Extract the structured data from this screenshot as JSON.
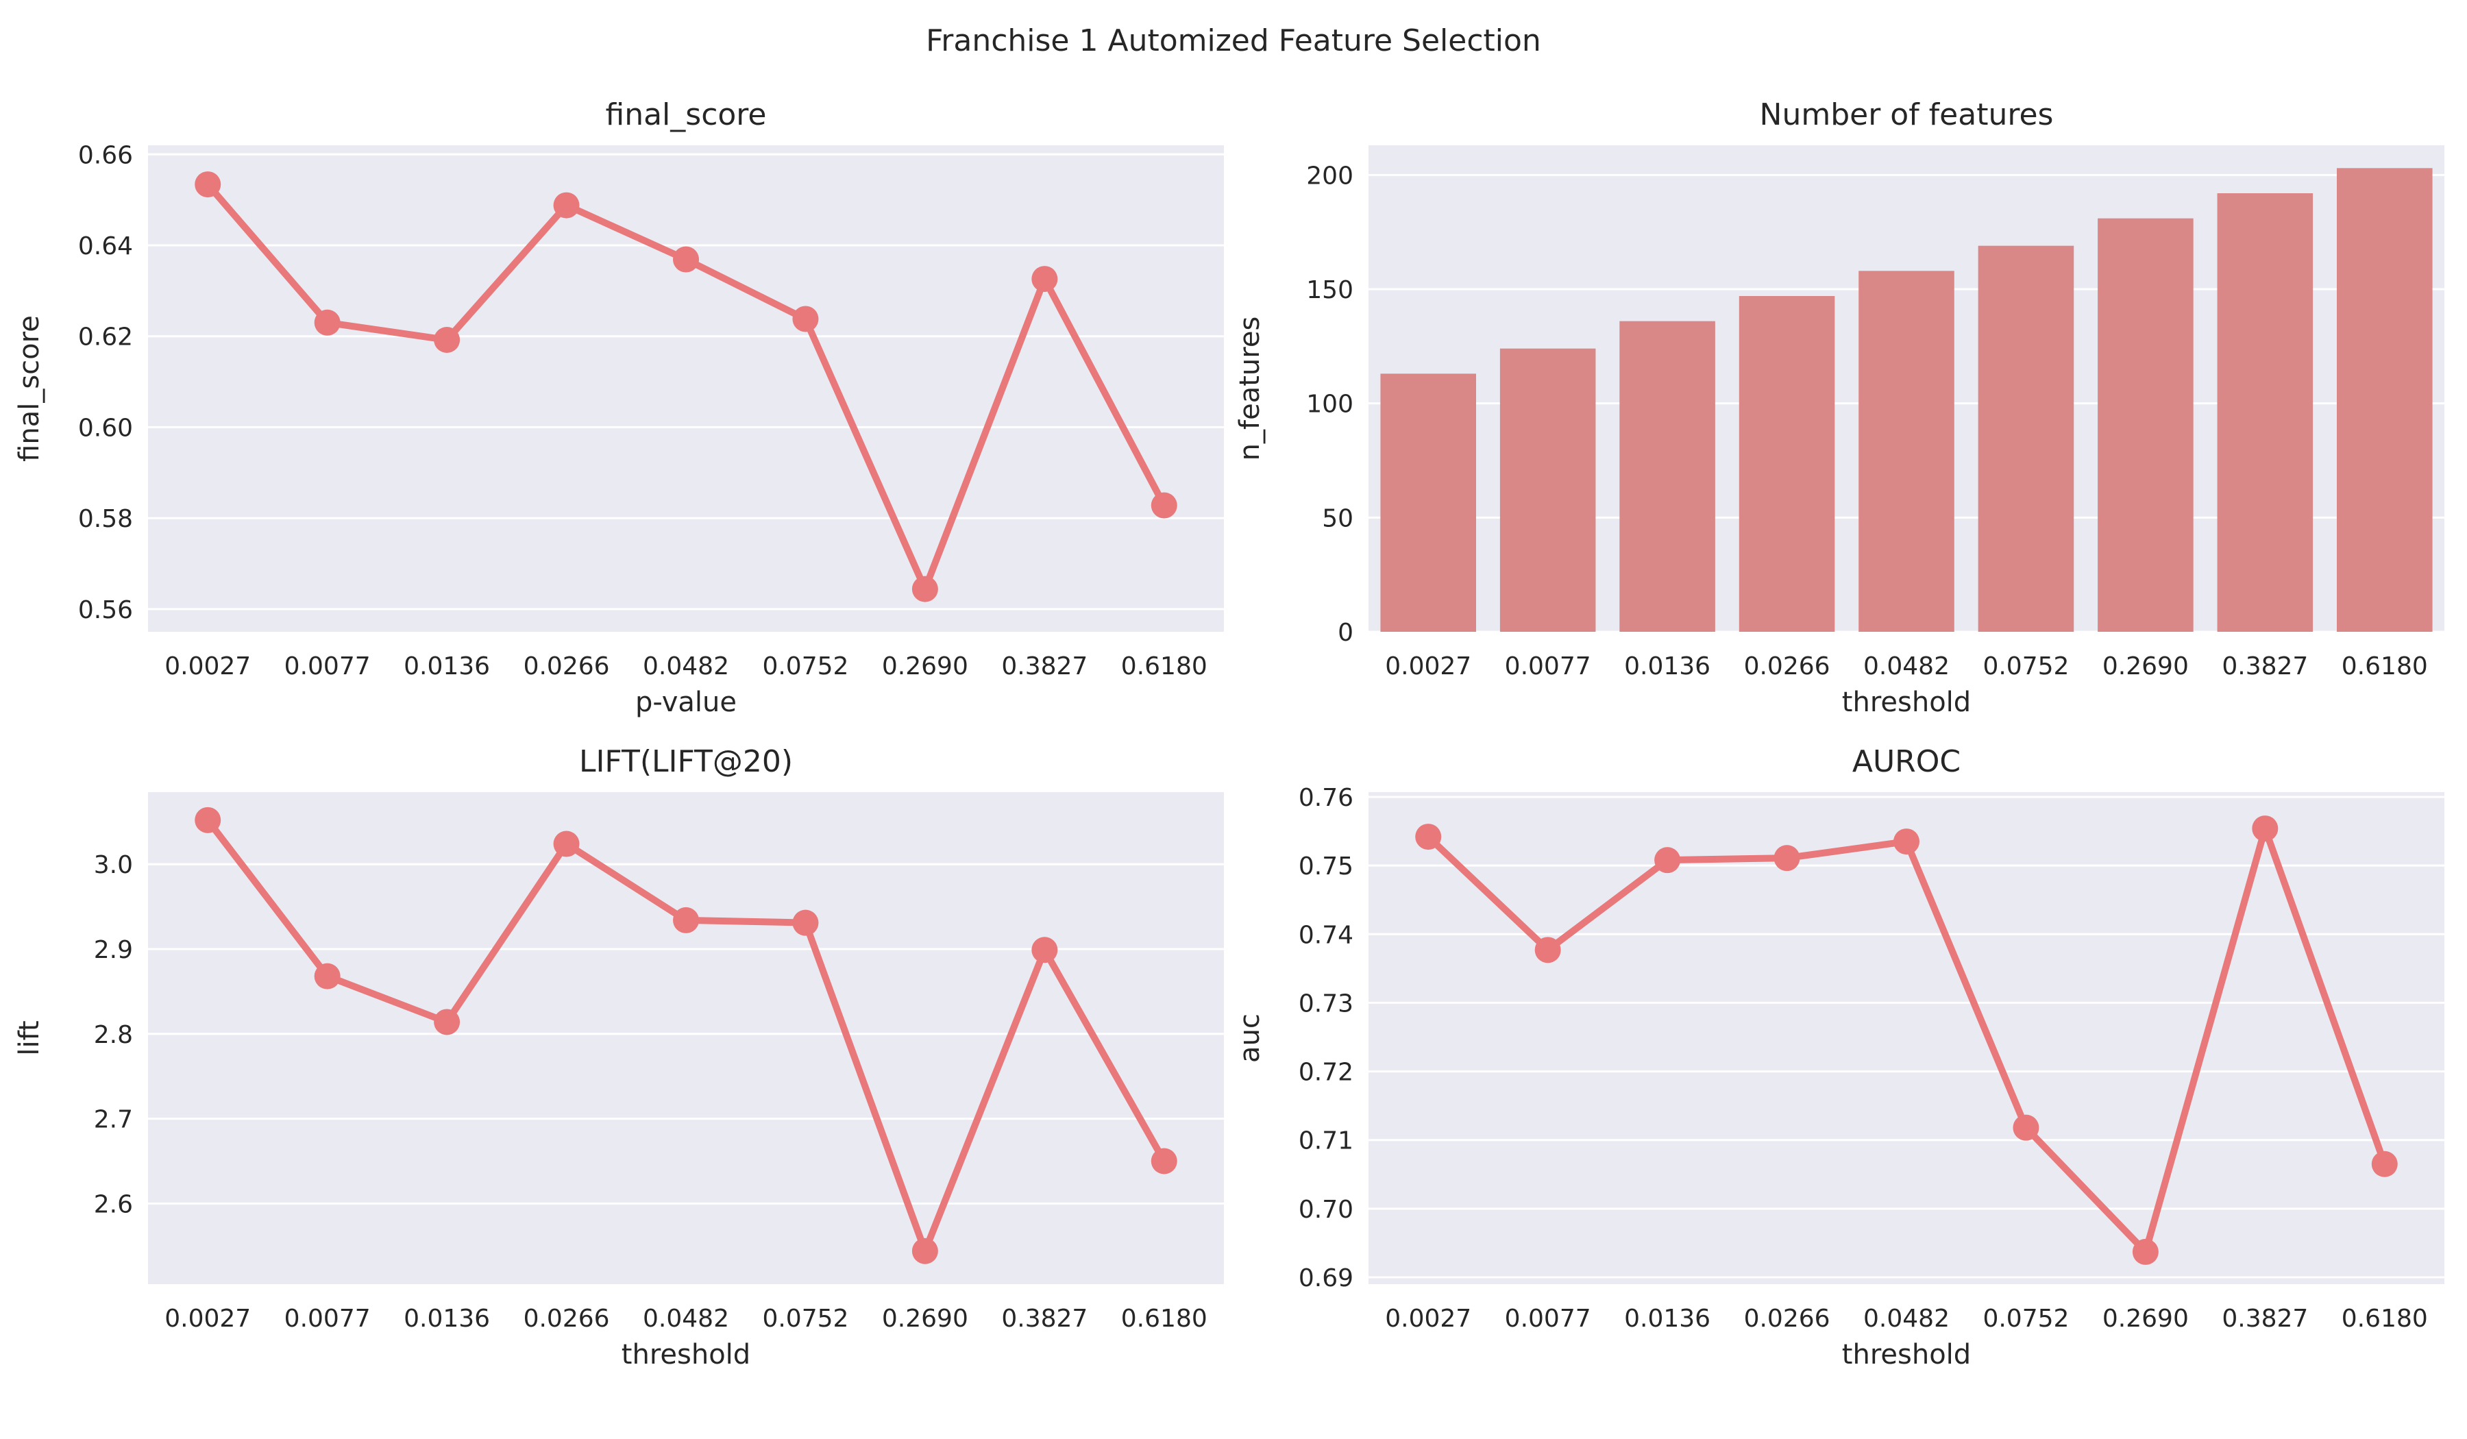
{
  "figure": {
    "suptitle": "Franchise 1 Automized Feature Selection",
    "colors": {
      "background": "#eaeaf2",
      "grid": "#ffffff",
      "text": "#262626",
      "series": "#e8787a",
      "bar": "#d98787"
    }
  },
  "chart_data": [
    {
      "type": "line",
      "title": "final_score",
      "xlabel": "p-value",
      "ylabel": "final_score",
      "categories": [
        "0.0027",
        "0.0077",
        "0.0136",
        "0.0266",
        "0.0482",
        "0.0752",
        "0.2690",
        "0.3827",
        "0.6180"
      ],
      "values": [
        0.6534,
        0.623,
        0.6192,
        0.6488,
        0.6369,
        0.6238,
        0.5644,
        0.6326,
        0.5828
      ],
      "ylim": [
        0.555,
        0.662
      ],
      "yticks": [
        "0.56",
        "0.58",
        "0.60",
        "0.62",
        "0.64",
        "0.66"
      ],
      "grid": true,
      "markers": true
    },
    {
      "type": "bar",
      "title": "Number of features",
      "xlabel": "threshold",
      "ylabel": "n_features",
      "categories": [
        "0.0027",
        "0.0077",
        "0.0136",
        "0.0266",
        "0.0482",
        "0.0752",
        "0.2690",
        "0.3827",
        "0.6180"
      ],
      "values": [
        113,
        124,
        136,
        147,
        158,
        169,
        181,
        192,
        203
      ],
      "ylim": [
        0,
        213
      ],
      "yticks": [
        "0",
        "50",
        "100",
        "150",
        "200"
      ],
      "grid": true
    },
    {
      "type": "line",
      "title": "LIFT(LIFT@20)",
      "xlabel": "threshold",
      "ylabel": "lift",
      "categories": [
        "0.0027",
        "0.0077",
        "0.0136",
        "0.0266",
        "0.0482",
        "0.0752",
        "0.2690",
        "0.3827",
        "0.6180"
      ],
      "values": [
        3.052,
        2.868,
        2.814,
        3.024,
        2.934,
        2.931,
        2.544,
        2.899,
        2.65
      ],
      "ylim": [
        2.505,
        3.085
      ],
      "yticks": [
        "2.6",
        "2.7",
        "2.8",
        "2.9",
        "3.0"
      ],
      "grid": true,
      "markers": true
    },
    {
      "type": "line",
      "title": "AUROC",
      "xlabel": "threshold",
      "ylabel": "auc",
      "categories": [
        "0.0027",
        "0.0077",
        "0.0136",
        "0.0266",
        "0.0482",
        "0.0752",
        "0.2690",
        "0.3827",
        "0.6180"
      ],
      "values": [
        0.7542,
        0.7377,
        0.7508,
        0.7511,
        0.7535,
        0.7118,
        0.6937,
        0.7554,
        0.7065
      ],
      "ylim": [
        0.689,
        0.7607
      ],
      "yticks": [
        "0.69",
        "0.70",
        "0.71",
        "0.72",
        "0.73",
        "0.74",
        "0.75",
        "0.76"
      ],
      "grid": true,
      "markers": true
    }
  ]
}
